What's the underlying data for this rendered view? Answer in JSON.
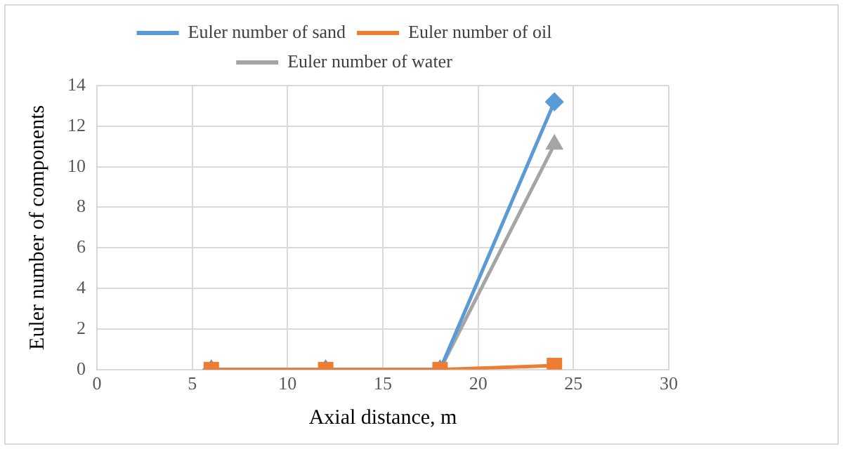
{
  "chart_data": {
    "type": "line",
    "xlabel": "Axial distance, m",
    "ylabel": "Euler number of components",
    "x": [
      6,
      12,
      18,
      24
    ],
    "series": [
      {
        "name": "Euler number of sand",
        "color": "#5b9bd5",
        "marker": "diamond",
        "values": [
          0,
          0,
          0,
          13.2
        ]
      },
      {
        "name": "Euler number of oil",
        "color": "#ed7d31",
        "marker": "square",
        "values": [
          0,
          0,
          0,
          0.2
        ]
      },
      {
        "name": "Euler number of water",
        "color": "#a5a5a5",
        "marker": "triangle",
        "values": [
          0,
          0,
          0,
          11.1
        ]
      }
    ],
    "xlim": [
      0,
      30
    ],
    "xticks": [
      0,
      5,
      10,
      15,
      20,
      25,
      30
    ],
    "ylim": [
      0,
      14
    ],
    "yticks": [
      0,
      2,
      4,
      6,
      8,
      10,
      12,
      14
    ],
    "grid": true,
    "legend": "top",
    "line_style": "solid"
  }
}
